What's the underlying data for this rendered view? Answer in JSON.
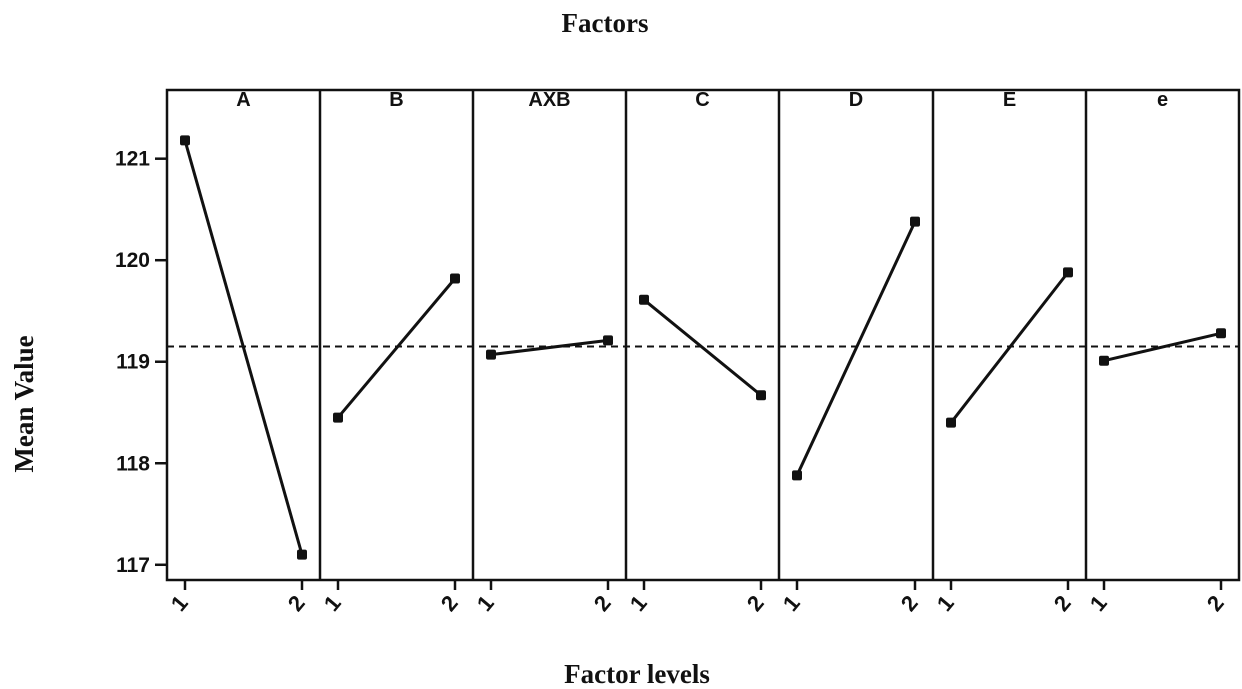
{
  "chart_data": {
    "type": "line",
    "title": "Factors",
    "xlabel": "Factor levels",
    "ylabel": "Mean Value",
    "ylim": [
      116.85,
      121.45
    ],
    "yticks": [
      117,
      118,
      119,
      120,
      121
    ],
    "levels": [
      "1",
      "2"
    ],
    "reference_line": 119.15,
    "grid": false,
    "colors": {
      "line": "#111111",
      "marker": "#111111",
      "frame": "#111111"
    },
    "panels": [
      {
        "name": "A",
        "values": [
          121.18,
          117.1
        ]
      },
      {
        "name": "B",
        "values": [
          118.45,
          119.82
        ]
      },
      {
        "name": "AXB",
        "values": [
          119.07,
          119.21
        ]
      },
      {
        "name": "C",
        "values": [
          119.61,
          118.67
        ]
      },
      {
        "name": "D",
        "values": [
          117.88,
          120.38
        ]
      },
      {
        "name": "E",
        "values": [
          118.4,
          119.88
        ]
      },
      {
        "name": "e",
        "values": [
          119.01,
          119.28
        ]
      }
    ]
  }
}
